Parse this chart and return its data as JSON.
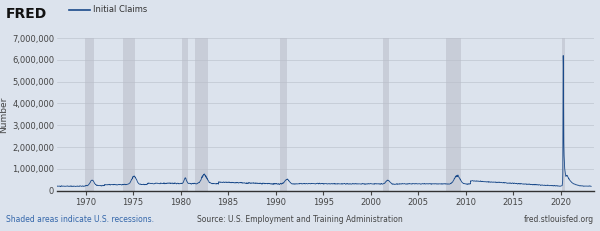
{
  "title": "FRED",
  "legend_label": "Initial Claims",
  "ylabel": "Number",
  "background_color": "#dce3ed",
  "plot_bg_color": "#dce3ed",
  "line_color": "#1a4a8a",
  "recession_color": "#c8cdd8",
  "footer_left": "Shaded areas indicate U.S. recessions.",
  "footer_center": "Source: U.S. Employment and Training Administration",
  "footer_right": "fred.stlouisfed.org",
  "ylim": [
    0,
    7000000
  ],
  "yticks": [
    0,
    1000000,
    2000000,
    3000000,
    4000000,
    5000000,
    6000000,
    7000000
  ],
  "xlim_start": 1967.0,
  "xlim_end": 2023.5,
  "xticks": [
    1970,
    1975,
    1980,
    1985,
    1990,
    1995,
    2000,
    2005,
    2010,
    2015,
    2020
  ],
  "recession_bands": [
    [
      1969.92,
      1970.92
    ],
    [
      1973.92,
      1975.25
    ],
    [
      1980.17,
      1980.75
    ],
    [
      1981.5,
      1982.92
    ],
    [
      1990.5,
      1991.25
    ],
    [
      2001.25,
      2001.92
    ],
    [
      2007.92,
      2009.5
    ],
    [
      2020.17,
      2020.5
    ]
  ]
}
